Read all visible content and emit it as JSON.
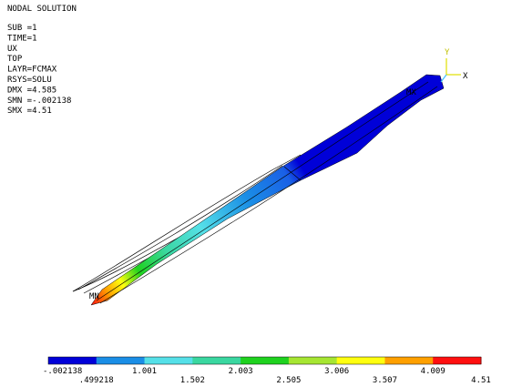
{
  "header": {
    "title": "NODAL SOLUTION",
    "info": [
      "SUB =1",
      "TIME=1",
      "UX",
      "TOP",
      "LAYR=FCMAX",
      "RSYS=SOLU",
      "DMX =4.585",
      "SMN =-.002138",
      "SMX =4.51"
    ]
  },
  "model": {
    "min_label": "MN",
    "max_label": "MX",
    "axis_y": "Y",
    "axis_x": "X"
  },
  "legend": {
    "colors": [
      "#0000d8",
      "#1a8ee6",
      "#55e0e8",
      "#3ad7a0",
      "#1fd21f",
      "#a6e632",
      "#ffff10",
      "#ffa000",
      "#ff1010"
    ],
    "labels": [
      "-.002138",
      ".499218",
      "1.001",
      "1.502",
      "2.003",
      "2.505",
      "3.006",
      "3.507",
      "4.009",
      "4.51"
    ]
  }
}
